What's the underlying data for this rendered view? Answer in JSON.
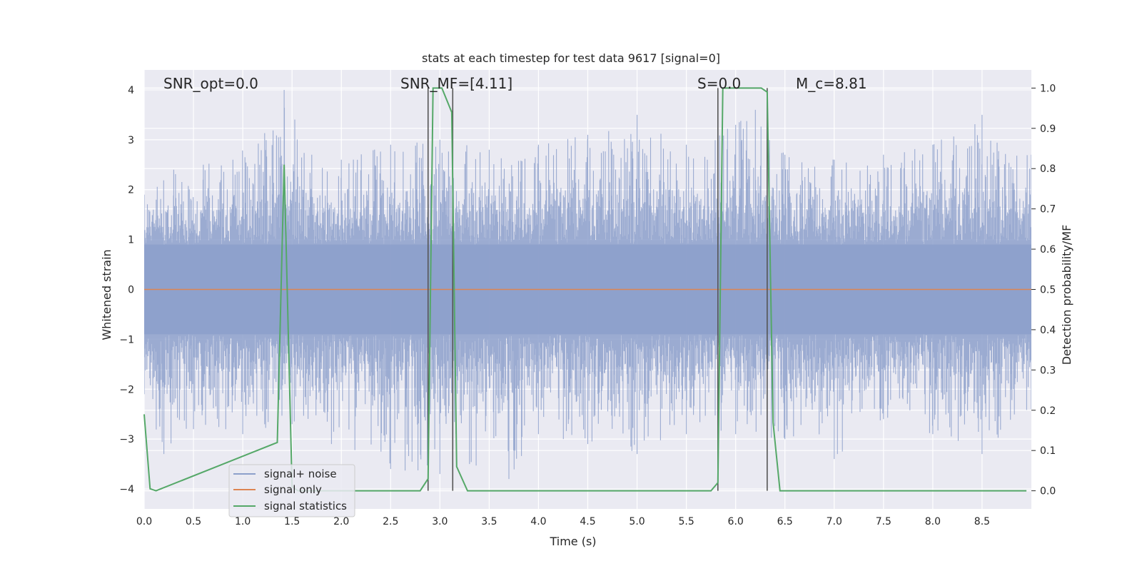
{
  "chart_data": {
    "type": "line",
    "title": "stats at each timestep for test data 9617 [signal=0]",
    "xlabel": "Time (s)",
    "ylabel_left": "Whitened strain",
    "ylabel_right": "Detection probability/MF",
    "xlim": [
      0.0,
      9.0
    ],
    "ylim_left": [
      -4.4,
      4.4
    ],
    "ylim_right": [
      -0.045,
      1.045
    ],
    "x_ticks": [
      "0.0",
      "0.5",
      "1.0",
      "1.5",
      "2.0",
      "2.5",
      "3.0",
      "3.5",
      "4.0",
      "4.5",
      "5.0",
      "5.5",
      "6.0",
      "6.5",
      "7.0",
      "7.5",
      "8.0",
      "8.5"
    ],
    "y_ticks_left": [
      "−4",
      "−3",
      "−2",
      "−1",
      "0",
      "1",
      "2",
      "3",
      "4"
    ],
    "y_ticks_right": [
      "0.0",
      "0.1",
      "0.2",
      "0.3",
      "0.4",
      "0.5",
      "0.6",
      "0.7",
      "0.8",
      "0.9",
      "1.0"
    ],
    "grid": true,
    "legend_position": "lower-left",
    "legend": [
      "signal+ noise",
      "signal only",
      "signal statistics"
    ],
    "colors": {
      "signal_noise": "#8da0cb",
      "signal_only": "#dd8452",
      "signal_statistics": "#55a868",
      "vlines": "#555555",
      "background": "#eaeaf2"
    },
    "annotations": {
      "snr_opt": "SNR_opt=0.0",
      "snr_mf": "SNR_MF=[4.11]",
      "s": "S=0.0",
      "mc": "M_c=8.81"
    },
    "series": [
      {
        "name": "signal+ noise",
        "axis": "left",
        "description_values": "whitened noise, approx gaussian, std ~1, range about -3.8 to 4.0",
        "envelope_upper": [
          [
            0.0,
            1.9
          ],
          [
            0.3,
            2.4
          ],
          [
            0.6,
            2.5
          ],
          [
            0.9,
            2.6
          ],
          [
            1.42,
            4.0
          ],
          [
            1.7,
            2.7
          ],
          [
            2.0,
            2.6
          ],
          [
            2.5,
            2.9
          ],
          [
            3.0,
            3.0
          ],
          [
            3.5,
            2.8
          ],
          [
            4.0,
            2.9
          ],
          [
            4.5,
            3.1
          ],
          [
            5.0,
            3.5
          ],
          [
            5.5,
            2.9
          ],
          [
            6.0,
            3.3
          ],
          [
            6.2,
            3.6
          ],
          [
            6.5,
            2.7
          ],
          [
            7.0,
            2.6
          ],
          [
            7.5,
            2.7
          ],
          [
            8.0,
            2.9
          ],
          [
            8.5,
            3.5
          ],
          [
            9.0,
            2.7
          ]
        ],
        "envelope_lower": [
          [
            0.0,
            -2.1
          ],
          [
            0.2,
            -3.3
          ],
          [
            0.5,
            -2.8
          ],
          [
            1.0,
            -2.9
          ],
          [
            1.5,
            -2.7
          ],
          [
            1.9,
            -3.1
          ],
          [
            2.5,
            -3.6
          ],
          [
            3.0,
            -3.7
          ],
          [
            3.3,
            -3.5
          ],
          [
            3.7,
            -3.8
          ],
          [
            4.0,
            -2.9
          ],
          [
            4.5,
            -3.1
          ],
          [
            5.0,
            -3.3
          ],
          [
            5.5,
            -2.9
          ],
          [
            6.0,
            -2.9
          ],
          [
            6.5,
            -3.0
          ],
          [
            7.0,
            -3.4
          ],
          [
            7.5,
            -2.6
          ],
          [
            8.0,
            -2.9
          ],
          [
            8.5,
            -3.3
          ],
          [
            9.0,
            -2.4
          ]
        ]
      },
      {
        "name": "signal only",
        "axis": "left",
        "x": [
          0.0,
          9.0
        ],
        "y": [
          0.0,
          0.0
        ]
      },
      {
        "name": "signal statistics",
        "axis": "right",
        "x": [
          0.0,
          0.06,
          0.12,
          1.35,
          1.42,
          1.5,
          1.56,
          2.8,
          2.88,
          2.93,
          3.02,
          3.12,
          3.17,
          3.28,
          5.75,
          5.82,
          5.87,
          6.26,
          6.32,
          6.38,
          6.45,
          8.95
        ],
        "y": [
          0.19,
          0.005,
          0.0,
          0.12,
          0.81,
          0.01,
          0.0,
          0.0,
          0.03,
          1.0,
          1.0,
          0.94,
          0.06,
          0.0,
          0.0,
          0.02,
          1.0,
          1.0,
          0.99,
          0.17,
          0.0,
          0.0
        ]
      }
    ],
    "vertical_lines_x": [
      2.88,
      3.13,
      5.82,
      6.32
    ]
  }
}
